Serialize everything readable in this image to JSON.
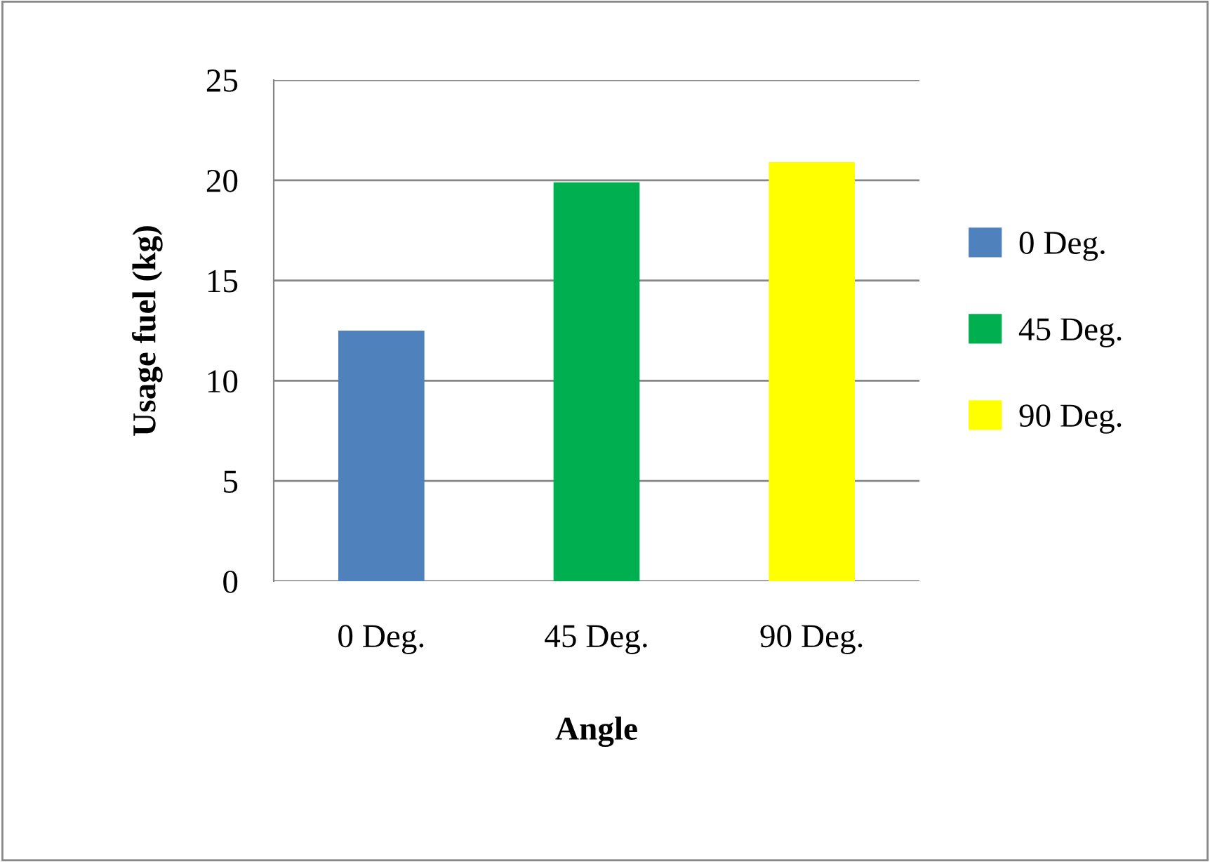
{
  "chart_data": {
    "type": "bar",
    "xlabel": "Angle",
    "ylabel": "Usage fuel (kg)",
    "categories": [
      "0 Deg.",
      "45 Deg.",
      "90 Deg."
    ],
    "series": [
      {
        "name": "0 Deg.",
        "color": "#4f81bd",
        "values": [
          12.5,
          null,
          null
        ]
      },
      {
        "name": "45 Deg.",
        "color": "#00b050",
        "values": [
          null,
          19.9,
          null
        ]
      },
      {
        "name": "90 Deg.",
        "color": "#ffff00",
        "values": [
          null,
          null,
          20.9
        ]
      }
    ],
    "stacked": true,
    "ylim": [
      0,
      25
    ],
    "yticks": [
      0,
      5,
      10,
      15,
      20,
      25
    ],
    "grid": "y",
    "legend": "right"
  }
}
